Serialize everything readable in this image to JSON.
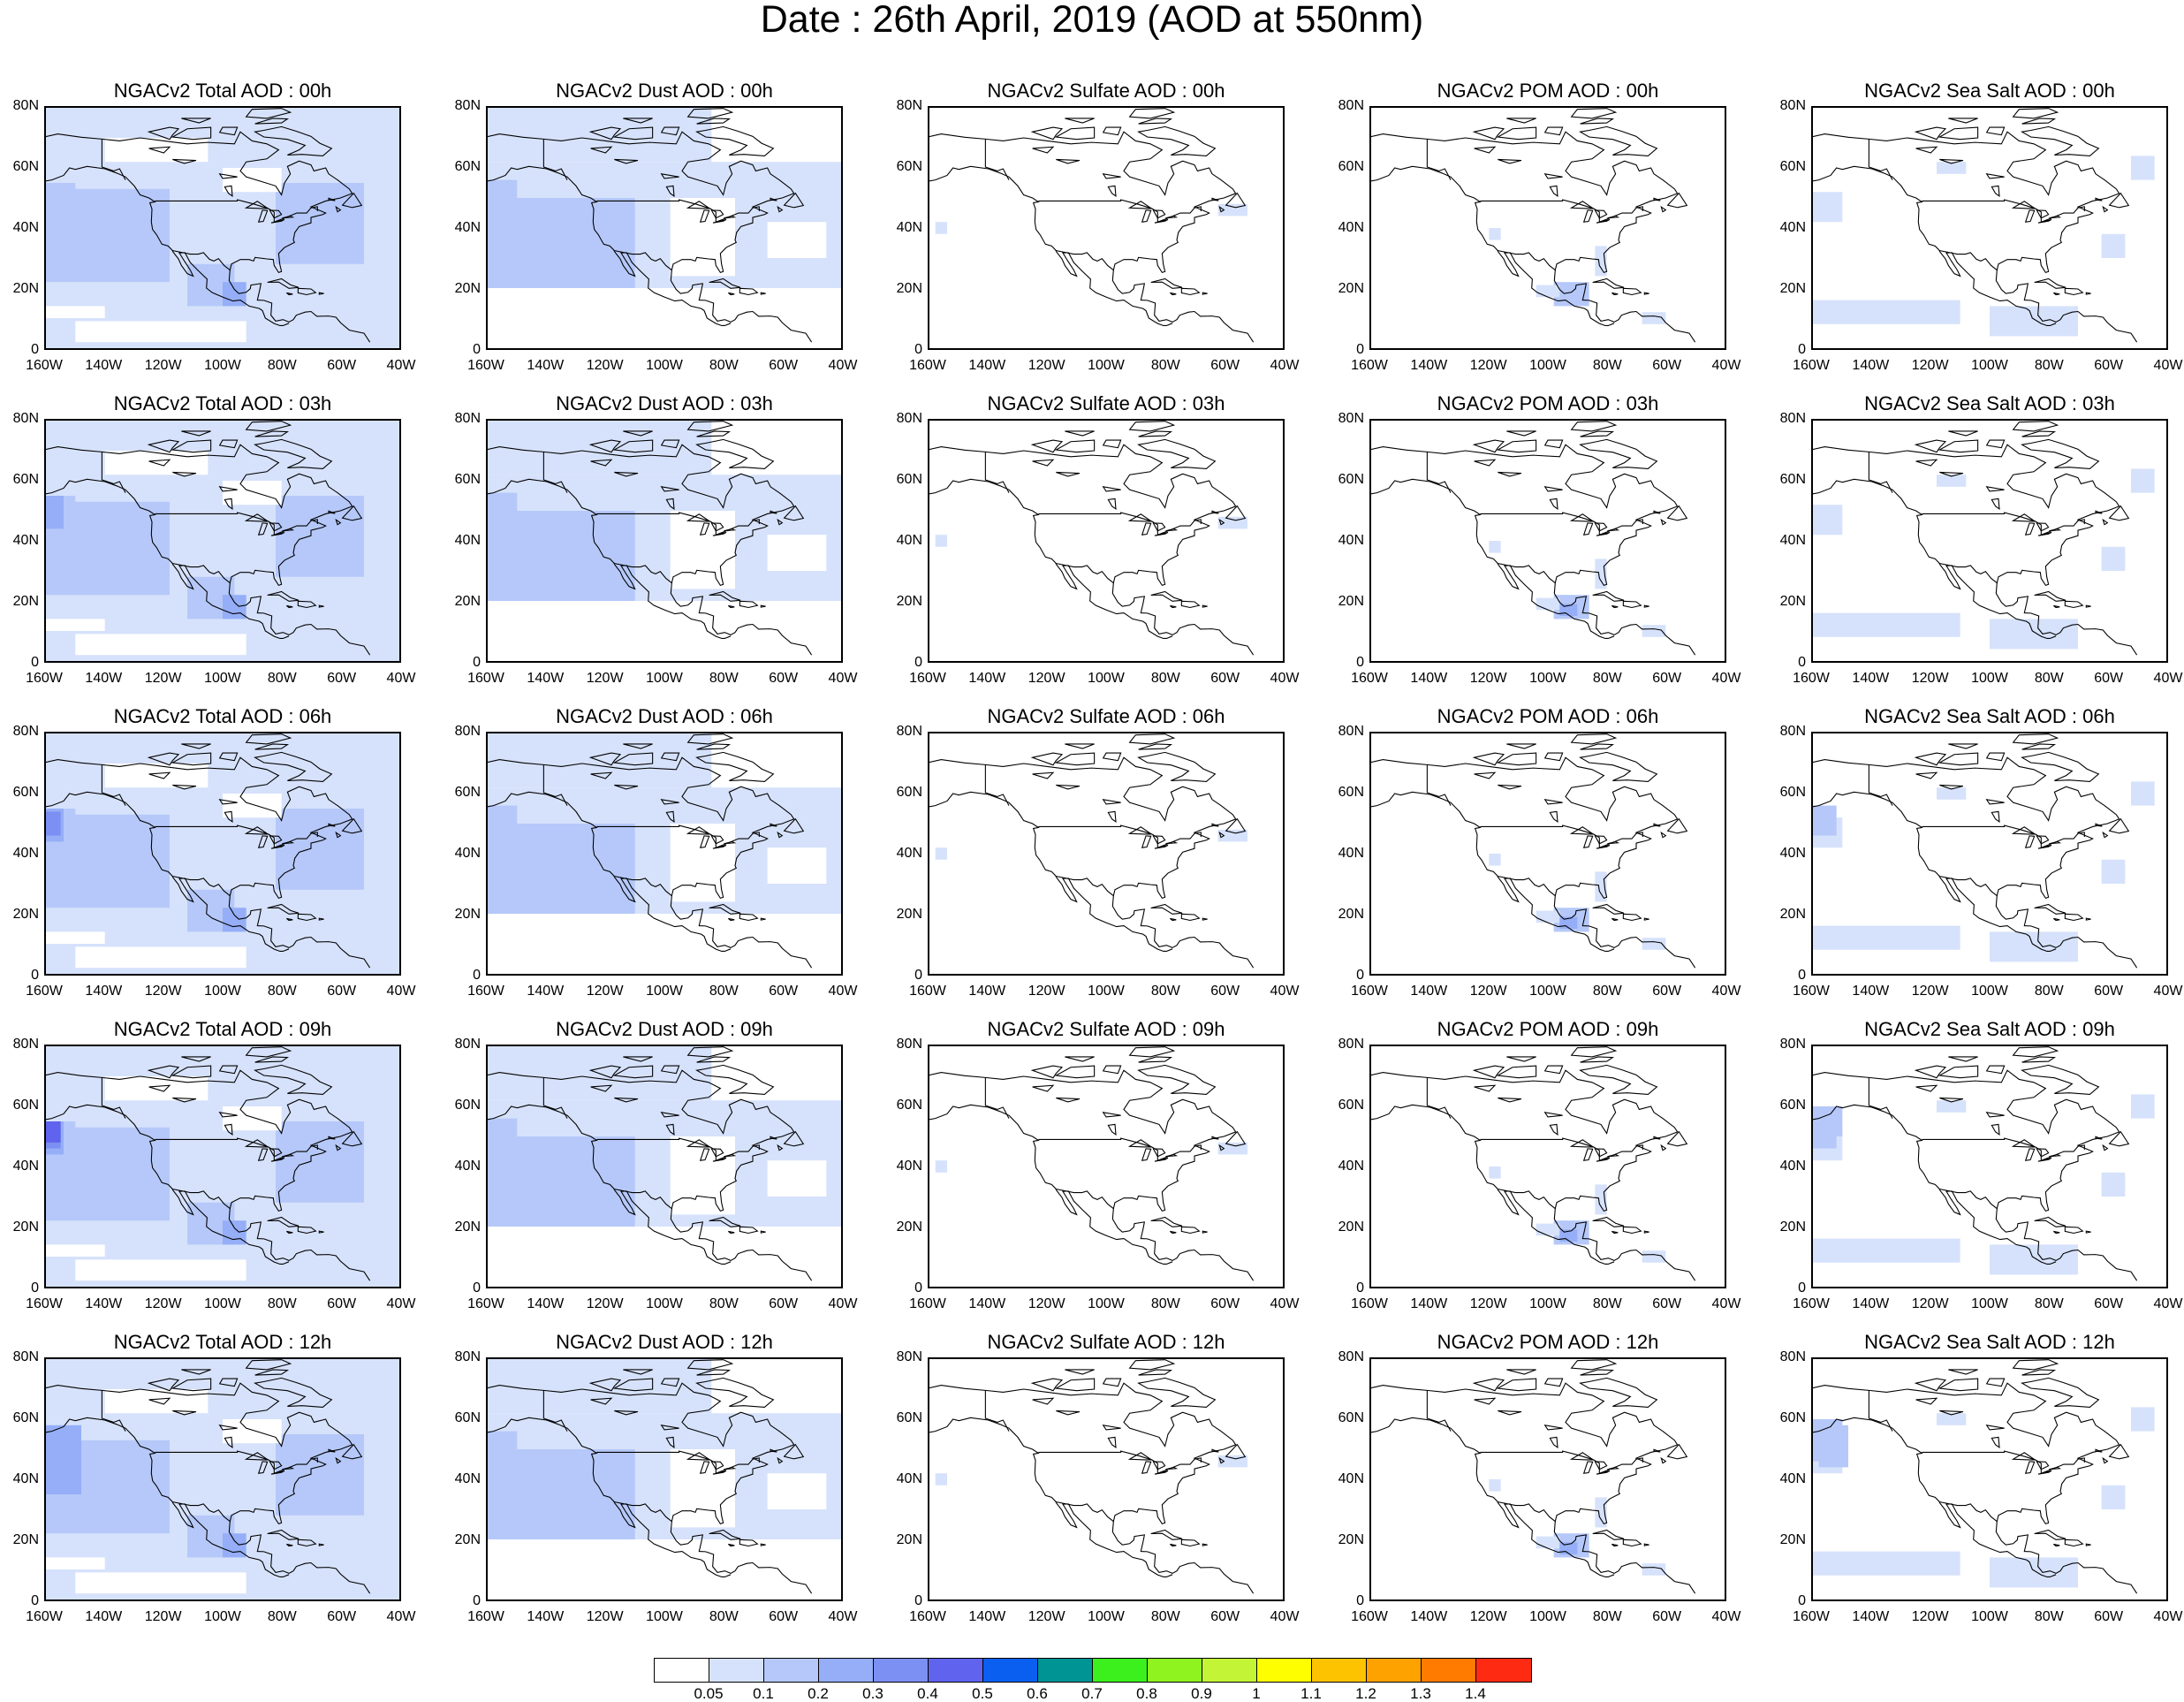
{
  "title": "Date : 26th April, 2019 (AOD at 550nm)",
  "y_ticks": [
    "80N",
    "60N",
    "40N",
    "20N",
    "0"
  ],
  "x_ticks": [
    "160W",
    "140W",
    "120W",
    "100W",
    "80W",
    "60W",
    "40W"
  ],
  "rows": [
    {
      "panels": [
        "NGACv2 Total AOD : 00h",
        "NGACv2 Dust AOD : 00h",
        "NGACv2 Sulfate AOD : 00h",
        "NGACv2 POM AOD : 00h",
        "NGACv2 Sea Salt AOD : 00h"
      ]
    },
    {
      "panels": [
        "NGACv2 Total AOD : 03h",
        "NGACv2 Dust AOD : 03h",
        "NGACv2 Sulfate AOD : 03h",
        "NGACv2 POM AOD : 03h",
        "NGACv2 Sea Salt AOD : 03h"
      ]
    },
    {
      "panels": [
        "NGACv2 Total AOD : 06h",
        "NGACv2 Dust AOD : 06h",
        "NGACv2 Sulfate AOD : 06h",
        "NGACv2 POM AOD : 06h",
        "NGACv2 Sea Salt AOD : 06h"
      ]
    },
    {
      "panels": [
        "NGACv2 Total AOD : 09h",
        "NGACv2 Dust AOD : 09h",
        "NGACv2 Sulfate AOD : 09h",
        "NGACv2 POM AOD : 09h",
        "NGACv2 Sea Salt  AOD : 09h"
      ]
    },
    {
      "panels": [
        "NGACv2 Total AOD  : 12h",
        "NGACv2 Dust AOD : 12h",
        "NGACv2 Sulfate AOD : 12h",
        "NGACv2 POM  AOD : 12h",
        "NGACv2 Sea Salt  AOD : 12h"
      ]
    }
  ],
  "colorbar": {
    "colors": [
      "#ffffff",
      "#d6e2fb",
      "#b5c8f9",
      "#95aef7",
      "#7c8ff3",
      "#5f63ee",
      "#0a5ff0",
      "#009494",
      "#3cf01e",
      "#8ef31e",
      "#c3f536",
      "#fefe00",
      "#fec300",
      "#fea200",
      "#fe7b00",
      "#fe2b12"
    ],
    "labels": [
      "0.05",
      "0.1",
      "0.2",
      "0.3",
      "0.4",
      "0.5",
      "0.6",
      "0.7",
      "0.8",
      "0.9",
      "1",
      "1.1",
      "1.2",
      "1.3",
      "1.4"
    ]
  }
}
